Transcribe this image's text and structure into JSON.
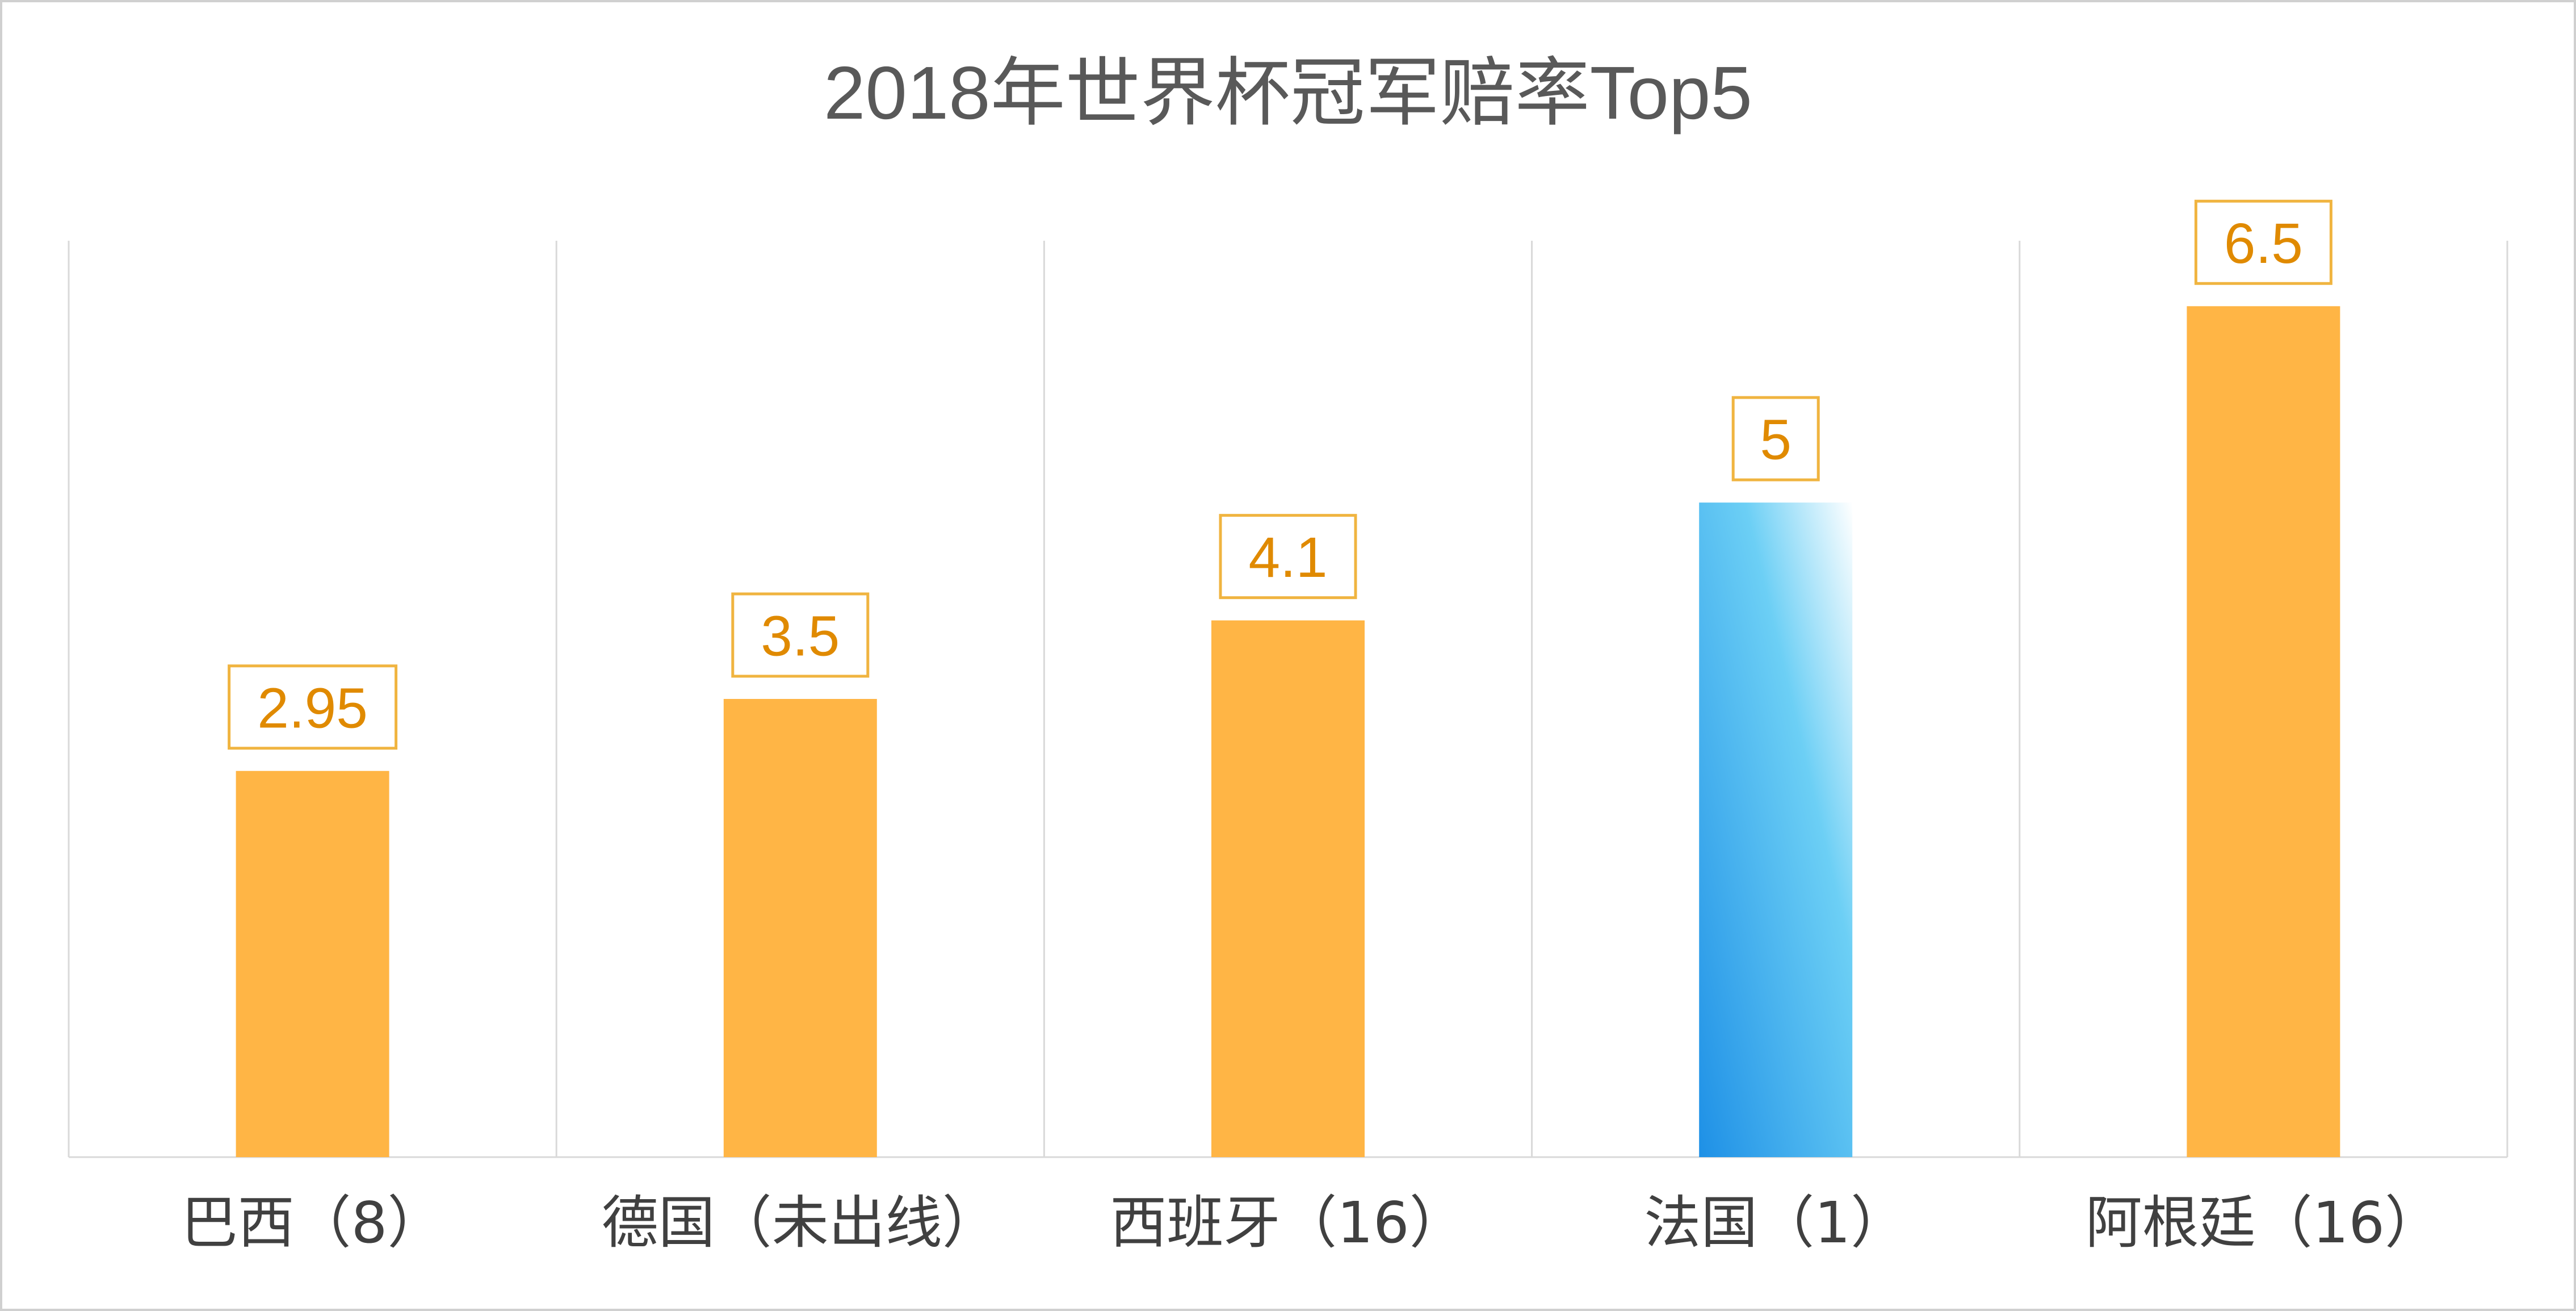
{
  "chart_data": {
    "type": "bar",
    "title": "2018年世界杯冠军赔率Top5",
    "categories": [
      "巴西（8）",
      "德国（未出线）",
      "西班牙（16）",
      "法国（1）",
      "阿根廷（16）"
    ],
    "values": [
      2.95,
      3.5,
      4.1,
      5,
      6.5
    ],
    "data_labels": [
      "2.95",
      "3.5",
      "4.1",
      "5",
      "6.5"
    ],
    "highlighted_category": "法国（1）",
    "ylim": [
      0,
      7
    ],
    "grid": "vertical separators between categories",
    "legend": "none",
    "xlabel": "",
    "ylabel": ""
  },
  "colors": {
    "bar": "#ffb545",
    "highlight_start": "#1e90e6",
    "highlight_end": "#ffffff",
    "label_text": "#e08a00",
    "label_border": "#f0b440",
    "title_text": "#595959",
    "axis_text": "#404040",
    "grid": "#d9d9d9"
  }
}
